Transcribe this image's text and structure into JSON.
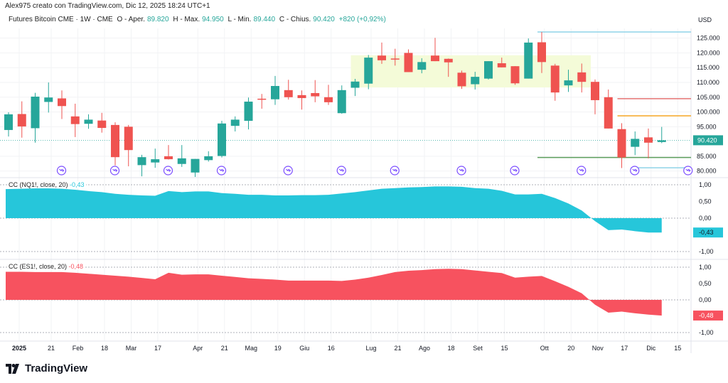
{
  "header": {
    "credit": "Alex975 creato con TradingView.com, Dic 12, 2025 18:24 UTC+1",
    "symbol": "Futures Bitcoin CME · 1W · CME",
    "open_label": "O - Aper.",
    "open": "89.820",
    "high_label": "H - Max.",
    "high": "94.950",
    "low_label": "L - Min.",
    "low": "89.440",
    "close_label": "C - Chius.",
    "close": "90.420",
    "change": "+820 (+0,92%)"
  },
  "price_axis": {
    "currency": "USD",
    "ticks": [
      "125.000",
      "120.000",
      "115.000",
      "110.000",
      "105.000",
      "100.000",
      "95.000",
      "85.000",
      "80.000"
    ],
    "tick_values": [
      125,
      120,
      115,
      110,
      105,
      100,
      95,
      85,
      80
    ],
    "last_price_label": "90.420",
    "last_price": 90.42
  },
  "colors": {
    "up": "#26a69a",
    "down": "#ef5350",
    "nq": "#26c6da",
    "es": "#f7525f",
    "event": "#7b4dff",
    "zone": "#f4fbd8"
  },
  "candles": {
    "open": [
      93.9,
      99.3,
      94.5,
      103.4,
      104.6,
      98.5,
      96.0,
      97.1,
      95.6,
      95.0,
      82.0,
      82.9,
      85.0,
      82.4,
      79.5,
      83.7,
      85.1,
      95.3,
      97.0,
      104.5,
      104.3,
      107.4,
      105.7,
      106.4,
      105.0,
      99.6,
      108.2,
      109.6,
      119.1,
      118.1,
      120.0,
      114.3,
      119.1,
      118.0,
      113.3,
      109.4,
      111.3,
      116.5,
      115.5,
      111.3,
      123.6,
      115.7,
      109.0,
      113.4,
      110.2,
      105.0,
      94.2,
      88.2,
      91.4,
      89.82
    ],
    "high": [
      99.9,
      103.6,
      106.5,
      110.0,
      107.3,
      102.8,
      99.2,
      99.7,
      96.5,
      95.6,
      85.5,
      87.6,
      88.8,
      88.8,
      84.1,
      86.7,
      97.0,
      98.5,
      104.9,
      106.1,
      112.2,
      110.9,
      107.3,
      110.8,
      109.2,
      109.0,
      111.2,
      119.3,
      123.5,
      121.4,
      121.2,
      118.2,
      125.1,
      118.1,
      114.0,
      113.6,
      117.2,
      118.4,
      115.5,
      124.9,
      127.1,
      116.3,
      114.3,
      116.4,
      111.0,
      107.6,
      96.2,
      93.4,
      94.4,
      94.95
    ],
    "low": [
      91.7,
      91.3,
      89.6,
      99.8,
      97.6,
      91.5,
      94.3,
      93.0,
      81.9,
      81.6,
      78.2,
      81.1,
      83.9,
      81.4,
      78.0,
      83.2,
      84.6,
      93.4,
      94.1,
      101.1,
      102.4,
      104.2,
      100.8,
      103.3,
      102.4,
      99.4,
      105.4,
      107.7,
      116.3,
      115.7,
      113.5,
      113.1,
      117.2,
      111.9,
      107.8,
      107.6,
      111.0,
      115.1,
      109.2,
      111.3,
      113.2,
      103.8,
      106.8,
      106.6,
      99.2,
      94.4,
      81.0,
      85.4,
      84.3,
      89.44
    ],
    "close": [
      99.2,
      95.1,
      105.2,
      104.9,
      102.0,
      95.9,
      97.4,
      94.6,
      84.7,
      87.1,
      84.7,
      84.0,
      84.0,
      84.3,
      84.1,
      85.0,
      96.1,
      97.4,
      103.5,
      104.3,
      108.8,
      105.0,
      104.7,
      105.3,
      103.3,
      107.4,
      110.3,
      118.4,
      117.5,
      117.8,
      113.5,
      116.9,
      117.2,
      116.8,
      108.7,
      111.9,
      117.2,
      115.1,
      109.7,
      123.5,
      116.9,
      106.6,
      110.7,
      110.2,
      104.0,
      94.4,
      84.6,
      90.9,
      89.6,
      90.42
    ]
  },
  "drawings": {
    "zone": {
      "from_index": 26,
      "to_index": 44,
      "top": 119.2,
      "bottom": 108.3
    },
    "levels": [
      {
        "price": 127.1,
        "from_index": 40,
        "color": "#8fd3e8"
      },
      {
        "price": 104.5,
        "from_index": 46,
        "color": "#e57373"
      },
      {
        "price": 98.7,
        "from_index": 46,
        "color": "#f5a623"
      },
      {
        "price": 84.6,
        "from_index": 40,
        "color": "#5c9e5c"
      },
      {
        "price": 81.1,
        "from_index": 47,
        "color": "#8fd3e8"
      }
    ],
    "event_indices": [
      4,
      8,
      12,
      16,
      21,
      25,
      29,
      34,
      38,
      43,
      47,
      51
    ]
  },
  "indicators": [
    {
      "label": "CC (NQ1!, close, 20)",
      "value": "-0,43",
      "color": "#26c6da",
      "axis": [
        "1,00",
        "0,50",
        "0,00",
        "-1,00"
      ],
      "values": [
        0.87,
        0.88,
        0.89,
        0.89,
        0.88,
        0.85,
        0.81,
        0.78,
        0.73,
        0.7,
        0.68,
        0.67,
        0.81,
        0.78,
        0.8,
        0.8,
        0.75,
        0.73,
        0.7,
        0.7,
        0.68,
        0.68,
        0.69,
        0.69,
        0.7,
        0.74,
        0.78,
        0.83,
        0.88,
        0.9,
        0.92,
        0.93,
        0.95,
        0.95,
        0.94,
        0.9,
        0.88,
        0.82,
        0.71,
        0.71,
        0.73,
        0.6,
        0.44,
        0.23,
        -0.09,
        -0.36,
        -0.34,
        -0.39,
        -0.43,
        -0.43
      ]
    },
    {
      "label": "CC (ES1!, close, 20)",
      "value": "-0,48",
      "color": "#f7525f",
      "axis": [
        "1,00",
        "0,50",
        "0,00",
        "-1,00"
      ],
      "values": [
        0.86,
        0.86,
        0.85,
        0.85,
        0.85,
        0.83,
        0.8,
        0.77,
        0.74,
        0.71,
        0.67,
        0.63,
        0.83,
        0.77,
        0.78,
        0.78,
        0.74,
        0.7,
        0.66,
        0.64,
        0.62,
        0.59,
        0.59,
        0.59,
        0.59,
        0.58,
        0.62,
        0.68,
        0.76,
        0.85,
        0.89,
        0.91,
        0.94,
        0.95,
        0.94,
        0.9,
        0.86,
        0.82,
        0.68,
        0.71,
        0.73,
        0.57,
        0.4,
        0.2,
        -0.15,
        -0.39,
        -0.36,
        -0.41,
        -0.45,
        -0.48
      ]
    }
  ],
  "time_axis": {
    "labels": [
      "2025",
      "21",
      "Feb",
      "18",
      "Mar",
      "17",
      "Apr",
      "21",
      "Mag",
      "19",
      "Giu",
      "16",
      "Lug",
      "21",
      "Ago",
      "18",
      "Set",
      "15",
      "Ott",
      "20",
      "Nov",
      "17",
      "Dic",
      "15"
    ],
    "label_index": [
      0.8,
      3.2,
      5.2,
      7.2,
      9.2,
      11.2,
      14.2,
      16.2,
      18.2,
      20.2,
      22.2,
      24.2,
      27.2,
      29.2,
      31.2,
      33.2,
      35.2,
      37.2,
      40.2,
      42.2,
      44.2,
      46.2,
      48.2,
      50.2
    ]
  },
  "branding": {
    "logo_text": "TradingView"
  }
}
